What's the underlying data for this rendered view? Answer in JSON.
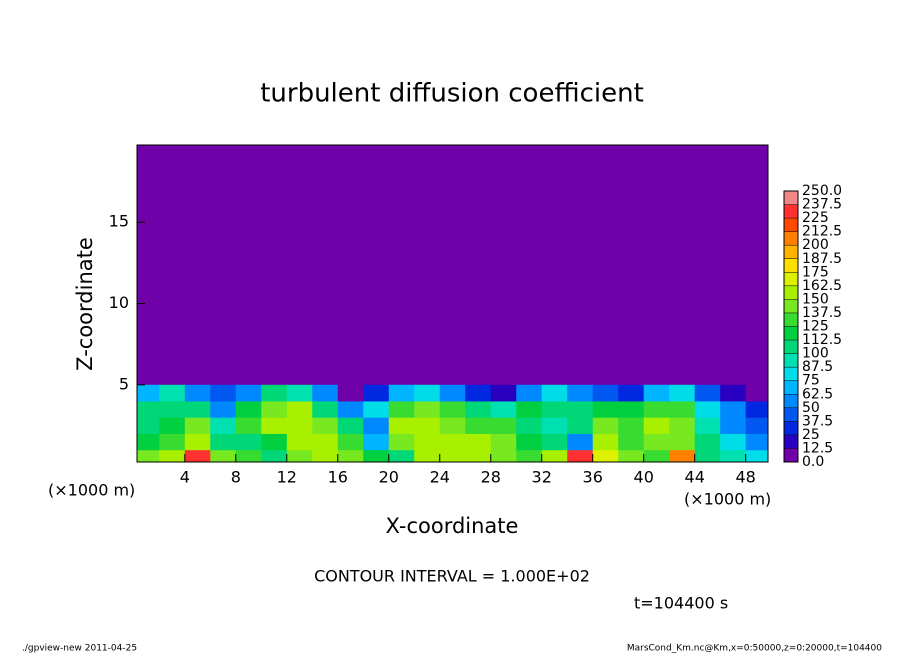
{
  "chart_data": {
    "type": "heatmap",
    "title": "turbulent diffusion coefficient",
    "xlabel": "X-coordinate",
    "ylabel": "Z-coordinate",
    "xunit_left": "(×1000 m)",
    "xunit_right": "(×1000 m)",
    "contour_interval_note": "CONTOUR INTERVAL = 1.000E+02",
    "time_note": "t=104400 s",
    "footer_left": "./gpview-new  2011-04-25",
    "footer_right": "MarsCond_Km.nc@Km,x=0:50000,z=0:20000,t=104400",
    "xlim": [
      0.25,
      49.75
    ],
    "ylim": [
      0.25,
      19.75
    ],
    "xticks": [
      4,
      8,
      12,
      16,
      20,
      24,
      28,
      32,
      36,
      40,
      44,
      48
    ],
    "yticks": [
      5,
      10,
      15
    ],
    "x": [
      1,
      3,
      5,
      7,
      9,
      11,
      13,
      15,
      17,
      19,
      21,
      23,
      25,
      27,
      29,
      31,
      33,
      35,
      37,
      39,
      41,
      43,
      45,
      47,
      49
    ],
    "z": [
      0.5,
      1.5,
      2.5,
      3.5,
      4.5
    ],
    "values": [
      [
        140,
        150,
        230,
        140,
        130,
        110,
        140,
        150,
        140,
        120,
        110,
        150,
        150,
        160,
        140,
        130,
        150,
        230,
        170,
        140,
        130,
        200,
        110,
        90,
        80
      ],
      [
        120,
        130,
        150,
        110,
        100,
        120,
        160,
        150,
        130,
        70,
        140,
        160,
        150,
        150,
        140,
        120,
        110,
        60,
        150,
        130,
        140,
        140,
        100,
        80,
        60
      ],
      [
        110,
        120,
        140,
        90,
        130,
        150,
        150,
        140,
        100,
        60,
        150,
        150,
        140,
        130,
        130,
        100,
        90,
        100,
        140,
        130,
        150,
        140,
        90,
        60,
        40
      ],
      [
        100,
        110,
        110,
        60,
        120,
        140,
        150,
        110,
        60,
        80,
        130,
        140,
        130,
        110,
        90,
        120,
        110,
        110,
        120,
        120,
        130,
        130,
        80,
        50,
        30
      ],
      [
        70,
        90,
        60,
        40,
        60,
        100,
        90,
        50,
        10,
        30,
        70,
        80,
        60,
        30,
        20,
        50,
        80,
        60,
        40,
        30,
        70,
        80,
        40,
        20,
        10
      ]
    ],
    "levels": [
      {
        "value": 0,
        "label": "0.0"
      },
      12.5,
      25,
      37.5,
      50,
      62.5,
      75,
      87.5,
      100,
      112.5,
      125,
      137.5,
      150,
      162.5,
      175,
      187.5,
      200,
      212.5,
      225,
      237.5,
      {
        "value": 250,
        "label": "250.0"
      }
    ],
    "colors": [
      "#7000a8",
      "#2a00c0",
      "#0028e0",
      "#0058f0",
      "#0088ff",
      "#00b4ff",
      "#00dce8",
      "#00e0b0",
      "#00d878",
      "#00d040",
      "#38dc30",
      "#78e820",
      "#a8f000",
      "#dcf000",
      "#ffe000",
      "#ffb400",
      "#ff8000",
      "#ff4800",
      "#ff3030",
      "#f08888"
    ]
  }
}
